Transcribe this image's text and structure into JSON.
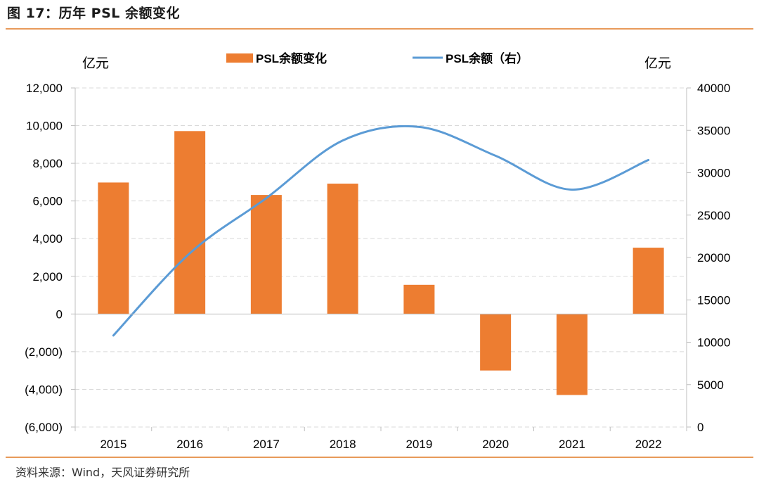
{
  "figure": {
    "title": "图 17：历年 PSL 余额变化",
    "source": "资料来源：Wind，天风证券研究所"
  },
  "chart_data": {
    "type": "bar+line",
    "categories": [
      "2015",
      "2016",
      "2017",
      "2018",
      "2019",
      "2020",
      "2021",
      "2022"
    ],
    "left_axis": {
      "unit_label": "亿元",
      "ylim": [
        -6000,
        12000
      ],
      "ticks": [
        -6000,
        -4000,
        -2000,
        0,
        2000,
        4000,
        6000,
        8000,
        10000,
        12000
      ],
      "tick_labels": [
        "(6,000)",
        "(4,000)",
        "(2,000)",
        "0",
        "2,000",
        "4,000",
        "6,000",
        "8,000",
        "10,000",
        "12,000"
      ]
    },
    "right_axis": {
      "unit_label": "亿元",
      "ylim": [
        0,
        40000
      ],
      "ticks": [
        0,
        5000,
        10000,
        15000,
        20000,
        25000,
        30000,
        35000,
        40000
      ],
      "tick_labels": [
        "0",
        "5000",
        "10000",
        "15000",
        "20000",
        "25000",
        "30000",
        "35000",
        "40000"
      ]
    },
    "series": [
      {
        "name": "PSL余额变化",
        "kind": "bar",
        "axis": "left",
        "color": "#ed7d31",
        "values": [
          6980,
          9710,
          6320,
          6920,
          1550,
          -3000,
          -4300,
          3520
        ]
      },
      {
        "name": "PSL余额（右）",
        "kind": "line",
        "axis": "right",
        "color": "#5b9bd5",
        "smooth": true,
        "values": [
          10800,
          20500,
          27000,
          33800,
          35400,
          32000,
          28000,
          31500
        ]
      }
    ],
    "grid": "horizontal dashed",
    "legend": "top-center"
  }
}
